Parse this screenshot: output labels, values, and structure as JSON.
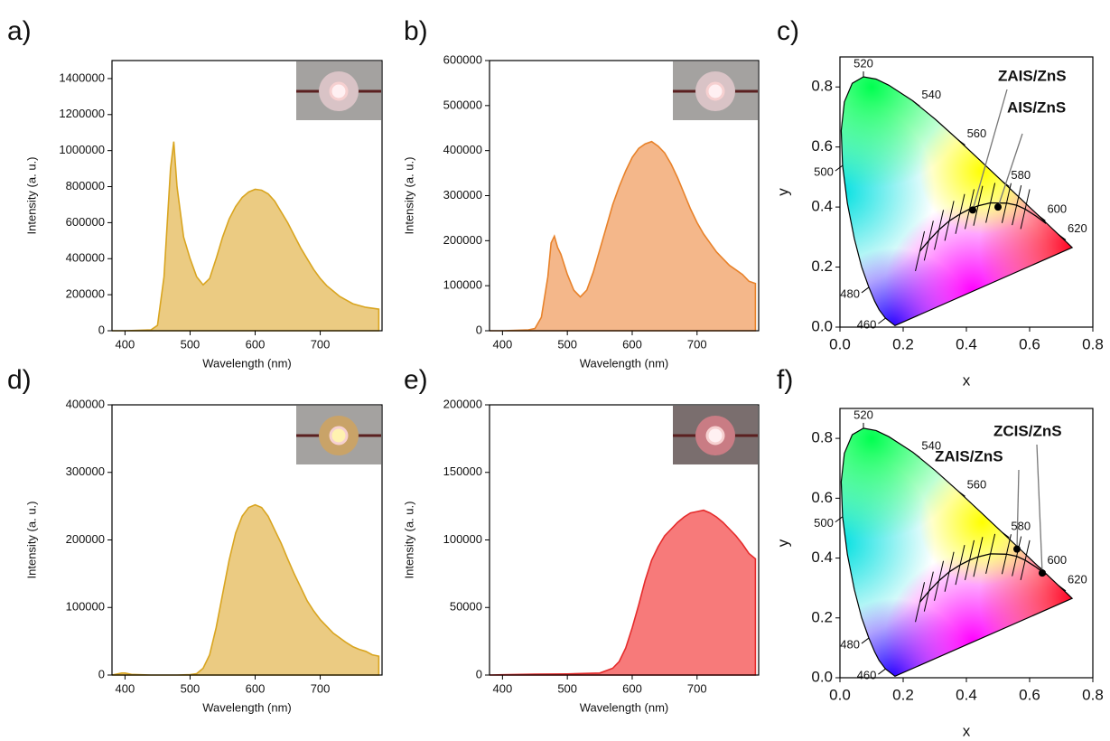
{
  "chart_data": [
    {
      "type": "area",
      "panel": "a)",
      "xlabel": "Wavelength (nm)",
      "ylabel": "Intensity (a. u.)",
      "color": "#d9a520",
      "fill": "#ebcb82",
      "x": [
        380,
        400,
        420,
        440,
        450,
        460,
        465,
        470,
        475,
        480,
        490,
        500,
        510,
        520,
        530,
        540,
        550,
        560,
        570,
        580,
        590,
        600,
        610,
        620,
        630,
        640,
        650,
        660,
        670,
        680,
        690,
        700,
        710,
        720,
        730,
        740,
        750,
        760,
        770,
        780,
        790
      ],
      "values": [
        0,
        0,
        2000,
        5000,
        30000,
        300000,
        600000,
        900000,
        1050000,
        800000,
        520000,
        400000,
        300000,
        255000,
        290000,
        400000,
        520000,
        620000,
        690000,
        740000,
        770000,
        785000,
        780000,
        760000,
        720000,
        660000,
        600000,
        530000,
        460000,
        400000,
        340000,
        290000,
        250000,
        220000,
        190000,
        170000,
        150000,
        140000,
        130000,
        125000,
        120000
      ],
      "xlim": [
        380,
        795
      ],
      "xticks": [
        400,
        500,
        600,
        700
      ],
      "ylim": [
        0,
        1500000
      ],
      "yticks": [
        0,
        200000,
        400000,
        600000,
        800000,
        1000000,
        1200000,
        1400000
      ]
    },
    {
      "type": "area",
      "panel": "b)",
      "xlabel": "Wavelength (nm)",
      "ylabel": "Intensity (a. u.)",
      "color": "#e8822a",
      "fill": "#f4b78a",
      "x": [
        380,
        400,
        420,
        440,
        450,
        460,
        470,
        475,
        480,
        485,
        490,
        500,
        510,
        520,
        530,
        540,
        550,
        560,
        570,
        580,
        590,
        600,
        610,
        620,
        630,
        640,
        650,
        660,
        670,
        680,
        690,
        700,
        710,
        720,
        730,
        740,
        750,
        760,
        770,
        780,
        790
      ],
      "values": [
        0,
        0,
        1000,
        2000,
        5000,
        30000,
        120000,
        195000,
        210000,
        185000,
        170000,
        125000,
        90000,
        75000,
        90000,
        130000,
        180000,
        230000,
        280000,
        320000,
        355000,
        385000,
        405000,
        415000,
        420000,
        410000,
        395000,
        370000,
        340000,
        305000,
        270000,
        240000,
        215000,
        195000,
        175000,
        160000,
        145000,
        135000,
        125000,
        110000,
        105000
      ],
      "xlim": [
        380,
        795
      ],
      "xticks": [
        400,
        500,
        600,
        700
      ],
      "ylim": [
        0,
        600000
      ],
      "yticks": [
        0,
        100000,
        200000,
        300000,
        400000,
        500000,
        600000
      ]
    },
    {
      "type": "cie",
      "panel": "c)",
      "xlabel": "x",
      "ylabel": "y",
      "locus_labels": [
        "460",
        "480",
        "500",
        "520",
        "540",
        "560",
        "580",
        "600",
        "620"
      ],
      "series": [
        {
          "name": "ZAIS/ZnS",
          "color": "#d9a520",
          "x": [
            0.42
          ],
          "values": [
            0.39
          ]
        },
        {
          "name": "AIS/ZnS",
          "color": "#f08a24",
          "x": [
            0.5
          ],
          "values": [
            0.4
          ]
        }
      ],
      "xlim": [
        0,
        0.8
      ],
      "xticks": [
        {
          "value": 0,
          "label": "0.0"
        },
        0.2,
        0.4,
        0.6,
        0.8
      ],
      "ylim": [
        0,
        0.9
      ],
      "yticks": [
        {
          "value": 0,
          "label": "0.0"
        },
        0.2,
        0.4,
        0.6,
        0.8
      ]
    },
    {
      "type": "area",
      "panel": "d)",
      "xlabel": "Wavelength (nm)",
      "ylabel": "Intensity (a. u.)",
      "color": "#d9a520",
      "fill": "#ebcb82",
      "x": [
        380,
        395,
        400,
        410,
        420,
        440,
        480,
        500,
        510,
        520,
        530,
        540,
        550,
        560,
        570,
        580,
        590,
        600,
        610,
        620,
        630,
        640,
        650,
        660,
        670,
        680,
        690,
        700,
        710,
        720,
        730,
        740,
        750,
        760,
        770,
        780,
        790
      ],
      "values": [
        0,
        3000,
        3000,
        1000,
        500,
        0,
        0,
        500,
        2000,
        10000,
        30000,
        70000,
        120000,
        170000,
        210000,
        235000,
        248000,
        252000,
        248000,
        235000,
        215000,
        195000,
        172000,
        150000,
        130000,
        110000,
        95000,
        82000,
        72000,
        62000,
        55000,
        48000,
        42000,
        38000,
        35000,
        30000,
        28000
      ],
      "xlim": [
        380,
        795
      ],
      "xticks": [
        400,
        500,
        600,
        700
      ],
      "ylim": [
        0,
        400000
      ],
      "yticks": [
        0,
        100000,
        200000,
        300000,
        400000
      ]
    },
    {
      "type": "area",
      "panel": "e)",
      "xlabel": "Wavelength (nm)",
      "ylabel": "Intensity (a. u.)",
      "color": "#e52b2b",
      "fill": "#f77a7a",
      "x": [
        380,
        400,
        450,
        500,
        550,
        570,
        580,
        590,
        600,
        610,
        620,
        630,
        640,
        650,
        660,
        670,
        680,
        690,
        700,
        710,
        720,
        730,
        740,
        750,
        760,
        770,
        780,
        790
      ],
      "values": [
        0,
        200,
        600,
        800,
        1500,
        5000,
        10000,
        20000,
        35000,
        52000,
        70000,
        85000,
        95000,
        103000,
        108000,
        113000,
        117000,
        120000,
        121000,
        122000,
        120000,
        117000,
        113000,
        108000,
        103000,
        97000,
        90000,
        86000
      ],
      "xlim": [
        380,
        795
      ],
      "xticks": [
        400,
        500,
        600,
        700
      ],
      "ylim": [
        0,
        200000
      ],
      "yticks": [
        0,
        50000,
        100000,
        150000,
        200000
      ]
    },
    {
      "type": "cie",
      "panel": "f)",
      "xlabel": "x",
      "ylabel": "y",
      "locus_labels": [
        "460",
        "480",
        "500",
        "520",
        "540",
        "560",
        "580",
        "600",
        "620"
      ],
      "series": [
        {
          "name": "ZCIS/ZnS",
          "color": "#e8101a",
          "x": [
            0.64
          ],
          "values": [
            0.35
          ]
        },
        {
          "name": "ZAIS/ZnS",
          "color": "#d9a520",
          "x": [
            0.56
          ],
          "values": [
            0.43
          ]
        }
      ],
      "xlim": [
        0,
        0.8
      ],
      "xticks": [
        {
          "value": 0,
          "label": "0.0"
        },
        0.2,
        0.4,
        0.6,
        0.8
      ],
      "ylim": [
        0,
        0.9
      ],
      "yticks": [
        {
          "value": 0,
          "label": "0.0"
        },
        0.2,
        0.4,
        0.6,
        0.8
      ]
    }
  ]
}
